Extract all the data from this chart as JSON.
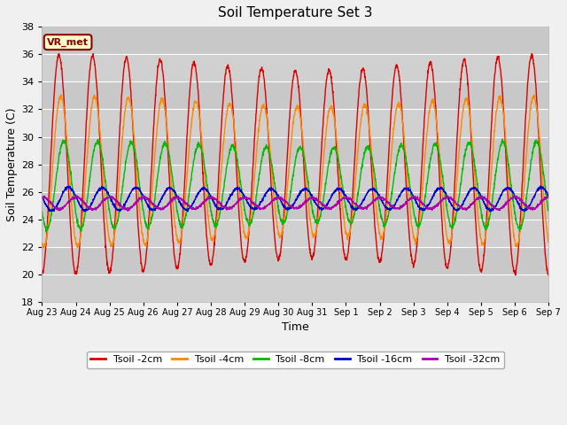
{
  "title": "Soil Temperature Set 3",
  "xlabel": "Time",
  "ylabel": "Soil Temperature (C)",
  "ylim": [
    18,
    38
  ],
  "yticks": [
    18,
    20,
    22,
    24,
    26,
    28,
    30,
    32,
    34,
    36,
    38
  ],
  "plot_bg": "#dcdcdc",
  "fig_bg": "#f0f0f0",
  "annotation_text": "VR_met",
  "annotation_bg": "#ffffcc",
  "annotation_border": "#8B0000",
  "lines": [
    {
      "label": "Tsoil -2cm",
      "color": "#dd0000",
      "mean": 28.0,
      "amp": 8.0,
      "phase": 0.0,
      "amp2": 0.0
    },
    {
      "label": "Tsoil -4cm",
      "color": "#ff8800",
      "mean": 27.5,
      "amp": 5.5,
      "phase": 0.35,
      "amp2": 0.0
    },
    {
      "label": "Tsoil -8cm",
      "color": "#00bb00",
      "mean": 26.5,
      "amp": 3.2,
      "phase": 0.9,
      "amp2": 0.0
    },
    {
      "label": "Tsoil -16cm",
      "color": "#0000cc",
      "mean": 25.5,
      "amp": 0.85,
      "phase": 1.8,
      "amp2": 0.0
    },
    {
      "label": "Tsoil -32cm",
      "color": "#aa00aa",
      "mean": 25.2,
      "amp": 0.45,
      "phase": 3.2,
      "amp2": 0.0
    }
  ],
  "xtick_labels": [
    "Aug 23",
    "Aug 24",
    "Aug 25",
    "Aug 26",
    "Aug 27",
    "Aug 28",
    "Aug 29",
    "Aug 30",
    "Aug 31",
    "Sep 1",
    "Sep 2",
    "Sep 3",
    "Sep 4",
    "Sep 5",
    "Sep 6",
    "Sep 7"
  ],
  "num_days": 15,
  "points_per_day": 144
}
